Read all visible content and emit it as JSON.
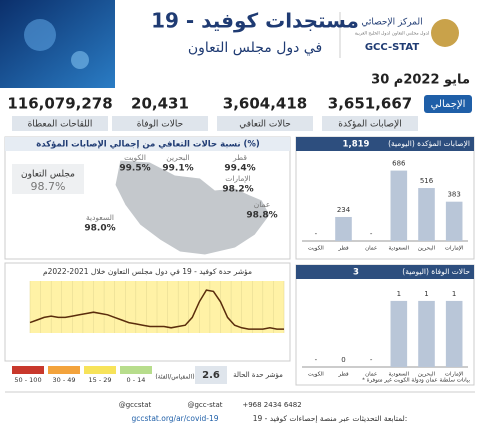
{
  "header": {
    "title": "مستجدات كوفيد - 19",
    "subtitle": "في دول مجلس التعاون",
    "org_name": "المركز الإحصائي",
    "org_subtitle": "لدول مجلس التعاون لدول الخليج العربية",
    "org_short": "GCC-STAT"
  },
  "date": "30 مايو 2022م",
  "totals": {
    "label": "الإجمالي",
    "items": [
      {
        "label": "الإصابات المؤكدة",
        "value": "3,651,667"
      },
      {
        "label": "حالات التعافي",
        "value": "3,604,418"
      },
      {
        "label": "حالات الوفاة",
        "value": "20,431"
      },
      {
        "label": "اللقاحات المعطاة",
        "value": "116,079,278"
      }
    ]
  },
  "recovery": {
    "title": "نسبة حالات التعافي من إجمالي الإصابات المؤكدة (%)",
    "gcc": {
      "label": "مجلس التعاون",
      "value": "98.7%"
    },
    "countries": [
      {
        "name": "الكويت",
        "value": "99.5%"
      },
      {
        "name": "البحرين",
        "value": "99.1%"
      },
      {
        "name": "قطر",
        "value": "99.4%"
      },
      {
        "name": "الإمارات",
        "value": "98.2%"
      },
      {
        "name": "عمان",
        "value": "98.8%"
      },
      {
        "name": "السعودية",
        "value": "98.0%"
      }
    ]
  },
  "chart_data": [
    {
      "type": "bar",
      "title": "الإصابات المؤكدة (اليومية)",
      "total": "1,819",
      "categories": [
        "الكويت",
        "قطر",
        "عمان",
        "السعودية",
        "البحرين",
        "الإمارات"
      ],
      "values": [
        null,
        234,
        null,
        686,
        516,
        383
      ],
      "value_labels": [
        "-",
        "234",
        "-",
        "686",
        "516",
        "383"
      ],
      "ylim": [
        0,
        760
      ],
      "color": "#b9c6d8"
    },
    {
      "type": "bar",
      "title": "حالات الوفاة (اليومية)",
      "total": "3",
      "categories": [
        "الكويت",
        "قطر",
        "عمان",
        "السعودية",
        "البحرين",
        "الإمارات"
      ],
      "values": [
        null,
        0,
        null,
        1,
        1,
        1
      ],
      "value_labels": [
        "-",
        "0",
        "-",
        "1",
        "1",
        "1"
      ],
      "ylim": [
        0,
        1.15
      ],
      "color": "#b9c6d8"
    },
    {
      "type": "line",
      "title": "مؤشر حدة كوفيد - 19 في دول مجلس التعاون خلال 2021-2022م",
      "values": [
        8,
        10,
        12,
        13,
        12,
        12,
        13,
        14,
        15,
        16,
        15,
        14,
        12,
        10,
        8,
        7,
        6,
        5,
        5,
        5,
        4,
        5,
        6,
        12,
        24,
        33,
        32,
        24,
        12,
        6,
        4,
        3,
        3,
        3,
        4,
        3,
        3
      ],
      "ylim": [
        0,
        40
      ],
      "color": "#5a2d0c",
      "background": "#fff2a6"
    }
  ],
  "severity": {
    "legend_title": "(المقياس/الفئة)",
    "classes": [
      {
        "label": "0 - 14",
        "color": "#b7dd8c"
      },
      {
        "label": "15 - 29",
        "color": "#f7e35a"
      },
      {
        "label": "30 - 49",
        "color": "#f3a33c"
      },
      {
        "label": "50 - 100",
        "color": "#c8382c"
      }
    ],
    "current_label": "مؤشر حدة الحالة",
    "current_value": "2.6"
  },
  "note": "* بيانات سلطنة عمان ودولة الكويت غير متوفرة",
  "footer": {
    "text": "لمتابعة التحديثات عبر منصة إحصاءات كوفيد - 19:",
    "url": "gccstat.org/ar/covid-19",
    "phone": "+968 2434 6482",
    "instagram": "@gcc-stat",
    "twitter": "@gccstat"
  }
}
